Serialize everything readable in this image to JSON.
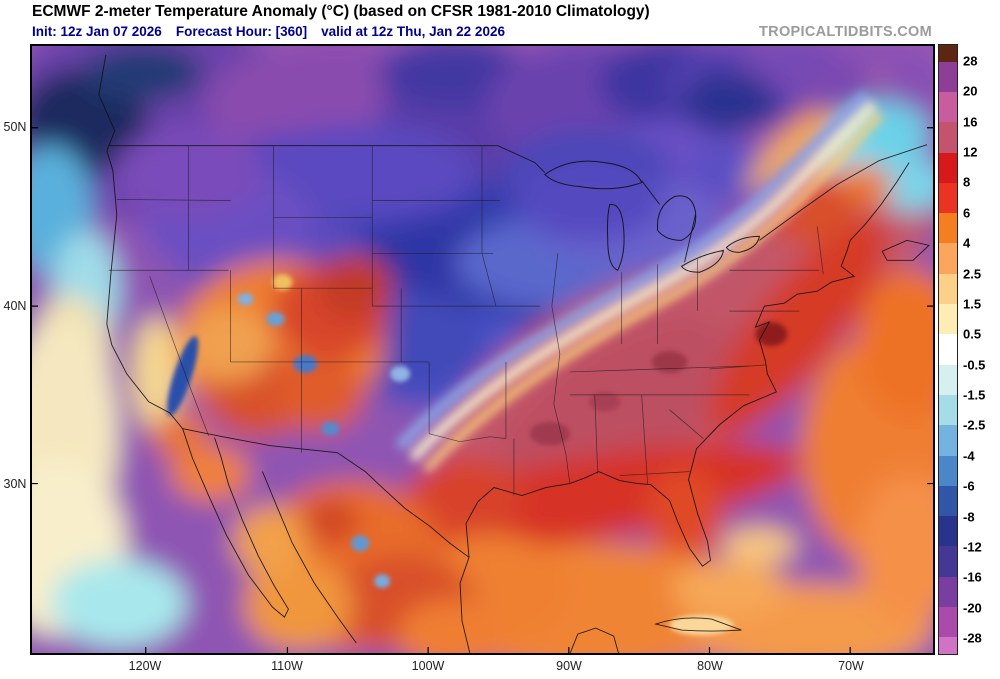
{
  "header": {
    "title": "ECMWF 2-meter Temperature Anomaly (°C) (based on CFSR 1981-2010 Climatology)",
    "init": "Init: 12z Jan 07 2026",
    "forecast_hour": "Forecast Hour: [360]",
    "valid": "valid at 12z Thu, Jan 22 2026",
    "watermark": "TROPICALTIDBITS.COM"
  },
  "map": {
    "lat_labels": [
      "50N",
      "40N",
      "30N"
    ],
    "lon_labels": [
      "120W",
      "110W",
      "100W",
      "90W",
      "80W",
      "70W"
    ]
  },
  "colorbar": {
    "tick_labels": [
      "28",
      "20",
      "16",
      "12",
      "8",
      "6",
      "4",
      "2.5",
      "1.5",
      "0.5",
      "-0.5",
      "-1.5",
      "-2.5",
      "-4",
      "-6",
      "-8",
      "-12",
      "-16",
      "-20",
      "-28"
    ],
    "segments": [
      "#5e2612",
      "#8d3f98",
      "#c75d9f",
      "#c4546d",
      "#d7191c",
      "#ea3323",
      "#f57e20",
      "#fca55d",
      "#fdd08a",
      "#fdedb5",
      "#ffffff",
      "#d6f0f0",
      "#a6dbe8",
      "#74b2e0",
      "#4a86c8",
      "#3156a8",
      "#28348c",
      "#453795",
      "#7a3ea0",
      "#aa4aab",
      "#d173c4"
    ]
  },
  "chart_data": {
    "type": "heatmap",
    "title": "ECMWF 2-meter Temperature Anomaly (°C) (based on CFSR 1981-2010 Climatology)",
    "colorbar_ticks": [
      28,
      20,
      16,
      12,
      8,
      6,
      4,
      2.5,
      1.5,
      0.5,
      -0.5,
      -1.5,
      -2.5,
      -4,
      -6,
      -8,
      -12,
      -16,
      -20,
      -28
    ],
    "colorbar_units": "°C",
    "lat_ticks": [
      "50N",
      "40N",
      "30N"
    ],
    "lon_ticks": [
      "120W",
      "110W",
      "100W",
      "90W",
      "80W",
      "70W"
    ],
    "pattern_summary": "Strong cold anomalies (-8 to -28 C, blue/purple) cover western and central Canada and the north-central US; strong warm anomalies (+8 to +16 C, red/rose) cover the south-central and southeastern US extending up the East Coast; moderate warm anomalies (orange) over the Southwest, Mexico, Gulf of Mexico and western Atlantic; near-normal pale band along the West Coast ocean."
  }
}
